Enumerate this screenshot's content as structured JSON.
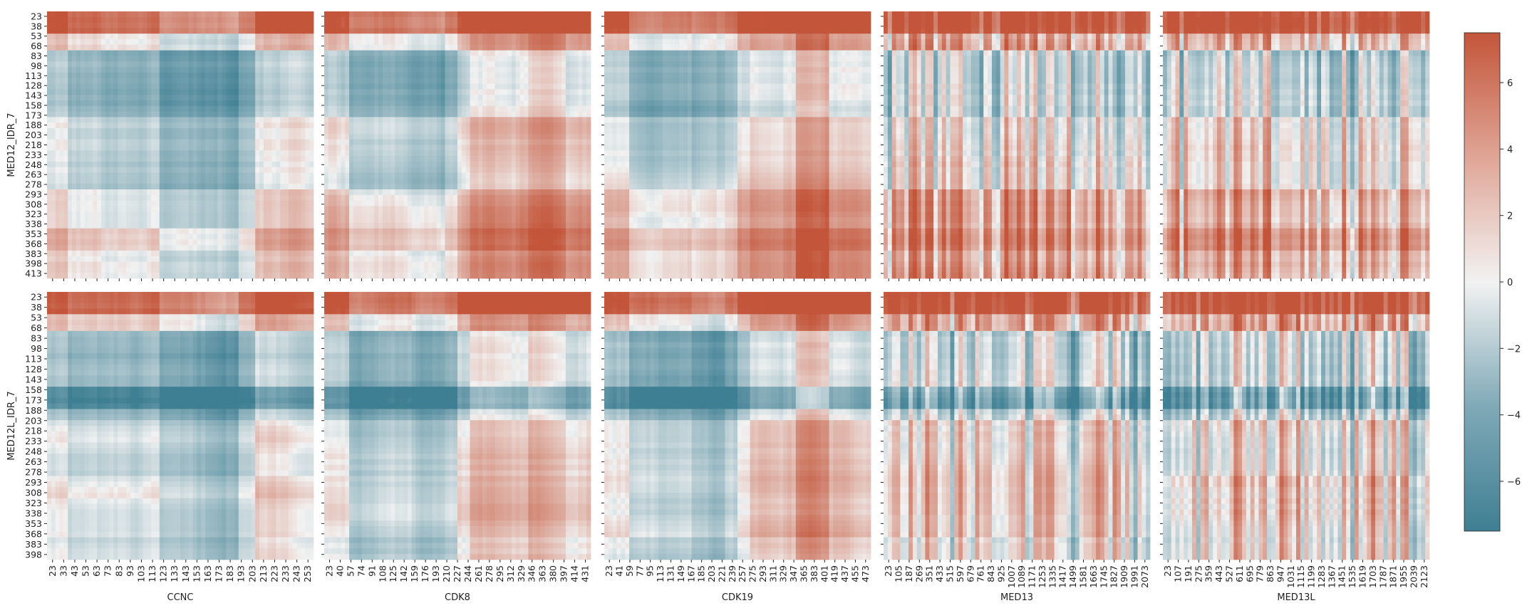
{
  "chart_data": {
    "type": "heatmap",
    "title": "",
    "rows": [
      {
        "ylabel": "MED12_IDR_7",
        "y_ticks": [
          "23",
          "38",
          "53",
          "68",
          "83",
          "98",
          "113",
          "128",
          "143",
          "158",
          "173",
          "188",
          "203",
          "218",
          "233",
          "248",
          "263",
          "278",
          "293",
          "308",
          "323",
          "338",
          "353",
          "368",
          "383",
          "398",
          "413"
        ]
      },
      {
        "ylabel": "MED12L_IDR_7",
        "y_ticks": [
          "23",
          "38",
          "53",
          "68",
          "83",
          "98",
          "113",
          "128",
          "143",
          "158",
          "173",
          "188",
          "203",
          "218",
          "233",
          "248",
          "263",
          "278",
          "293",
          "308",
          "323",
          "338",
          "353",
          "368",
          "383",
          "398"
        ]
      }
    ],
    "columns": [
      {
        "xlabel": "CCNC",
        "x_ticks": [
          "23",
          "33",
          "43",
          "53",
          "63",
          "73",
          "83",
          "93",
          "103",
          "113",
          "123",
          "133",
          "143",
          "153",
          "163",
          "173",
          "183",
          "193",
          "203",
          "213",
          "223",
          "233",
          "243",
          "253"
        ]
      },
      {
        "xlabel": "CDK8",
        "x_ticks": [
          "23",
          "40",
          "57",
          "74",
          "91",
          "108",
          "125",
          "142",
          "159",
          "176",
          "193",
          "210",
          "227",
          "244",
          "261",
          "278",
          "295",
          "312",
          "329",
          "346",
          "363",
          "380",
          "397",
          "414",
          "431"
        ]
      },
      {
        "xlabel": "CDK19",
        "x_ticks": [
          "23",
          "41",
          "59",
          "77",
          "95",
          "113",
          "131",
          "149",
          "167",
          "185",
          "203",
          "221",
          "239",
          "257",
          "275",
          "293",
          "311",
          "329",
          "347",
          "365",
          "383",
          "401",
          "419",
          "437",
          "455",
          "473"
        ]
      },
      {
        "xlabel": "MED13",
        "x_ticks": [
          "23",
          "105",
          "187",
          "269",
          "351",
          "433",
          "515",
          "597",
          "679",
          "761",
          "843",
          "925",
          "1007",
          "1089",
          "1171",
          "1253",
          "1335",
          "1417",
          "1499",
          "1581",
          "1663",
          "1745",
          "1827",
          "1909",
          "1991",
          "2073"
        ]
      },
      {
        "xlabel": "MED13L",
        "x_ticks": [
          "23",
          "107",
          "191",
          "275",
          "359",
          "443",
          "527",
          "611",
          "695",
          "779",
          "863",
          "947",
          "1031",
          "1115",
          "1199",
          "1283",
          "1367",
          "1451",
          "1535",
          "1619",
          "1703",
          "1787",
          "1871",
          "1955",
          "2039",
          "2123"
        ]
      }
    ],
    "colorbar": {
      "min": -7.5,
      "max": 7.5,
      "ticks": [
        -6,
        -4,
        -2,
        0,
        2,
        4,
        6
      ],
      "tick_labels": [
        "−6",
        "−4",
        "−2",
        "0",
        "2",
        "4",
        "6"
      ]
    },
    "colormap": {
      "negative": "#3f7f93",
      "zero": "#f2f2f2",
      "positive": "#c3553a"
    },
    "grid": false
  }
}
